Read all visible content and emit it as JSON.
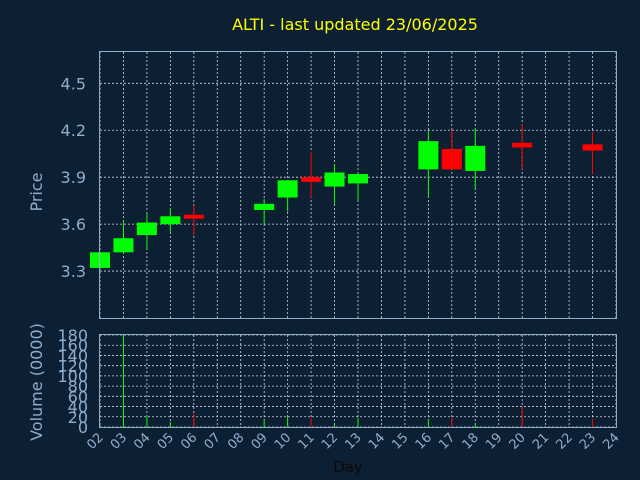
{
  "colors": {
    "background": "#0d1f33",
    "frame": "#8faecc",
    "grid": "#cfd8e0",
    "title": "#ffff00",
    "up": "#00ff00",
    "down": "#ff0000",
    "axis_text": "#8faecc",
    "xlabel_text": "#0a0a0a"
  },
  "chart_data": [
    {
      "type": "candlestick",
      "title": "ALTI - last updated 23/06/2025",
      "ylabel": "Price",
      "ylim": [
        3.0,
        4.7
      ],
      "yticks": [
        "3.3",
        "3.6",
        "3.9",
        "4.2",
        "4.5"
      ],
      "grid": true,
      "x": [
        "02",
        "03",
        "04",
        "05",
        "06",
        "07",
        "08",
        "09",
        "10",
        "11",
        "12",
        "13",
        "14",
        "15",
        "16",
        "17",
        "18",
        "19",
        "20",
        "21",
        "22",
        "23",
        "24"
      ],
      "candles": [
        {
          "day": "02",
          "open": 3.32,
          "high": 3.42,
          "low": 3.31,
          "close": 3.42
        },
        {
          "day": "03",
          "open": 3.42,
          "high": 3.62,
          "low": 3.41,
          "close": 3.51
        },
        {
          "day": "04",
          "open": 3.53,
          "high": 3.67,
          "low": 3.44,
          "close": 3.61
        },
        {
          "day": "05",
          "open": 3.6,
          "high": 3.7,
          "low": 3.55,
          "close": 3.65
        },
        {
          "day": "06",
          "open": 3.66,
          "high": 3.72,
          "low": 3.53,
          "close": 3.64
        },
        {
          "day": "09",
          "open": 3.69,
          "high": 3.76,
          "low": 3.6,
          "close": 3.73
        },
        {
          "day": "10",
          "open": 3.77,
          "high": 3.88,
          "low": 3.68,
          "close": 3.88
        },
        {
          "day": "11",
          "open": 3.9,
          "high": 4.06,
          "low": 3.77,
          "close": 3.87
        },
        {
          "day": "12",
          "open": 3.84,
          "high": 3.98,
          "low": 3.73,
          "close": 3.93
        },
        {
          "day": "13",
          "open": 3.86,
          "high": 3.93,
          "low": 3.75,
          "close": 3.92
        },
        {
          "day": "16",
          "open": 3.95,
          "high": 4.2,
          "low": 3.77,
          "close": 4.13
        },
        {
          "day": "17",
          "open": 4.08,
          "high": 4.2,
          "low": 3.95,
          "close": 3.95
        },
        {
          "day": "18",
          "open": 3.94,
          "high": 4.21,
          "low": 3.83,
          "close": 4.1
        },
        {
          "day": "20",
          "open": 4.12,
          "high": 4.24,
          "low": 3.95,
          "close": 4.09
        },
        {
          "day": "23",
          "open": 4.11,
          "high": 4.19,
          "low": 3.92,
          "close": 4.07
        }
      ]
    },
    {
      "type": "bar",
      "xlabel": "Day",
      "ylabel": "Volume (0000)",
      "ylim": [
        0,
        180
      ],
      "yticks": [
        "0",
        "20",
        "40",
        "60",
        "80",
        "100",
        "120",
        "140",
        "160",
        "180"
      ],
      "grid": true,
      "categories": [
        "02",
        "03",
        "04",
        "05",
        "06",
        "09",
        "10",
        "11",
        "12",
        "13",
        "16",
        "17",
        "18",
        "20",
        "23"
      ],
      "values": [
        4,
        180,
        22,
        10,
        26,
        14,
        20,
        18,
        4,
        18,
        16,
        18,
        8,
        40,
        16
      ],
      "directions": [
        "up",
        "up",
        "up",
        "up",
        "down",
        "up",
        "up",
        "down",
        "up",
        "up",
        "up",
        "down",
        "up",
        "down",
        "down"
      ]
    }
  ]
}
